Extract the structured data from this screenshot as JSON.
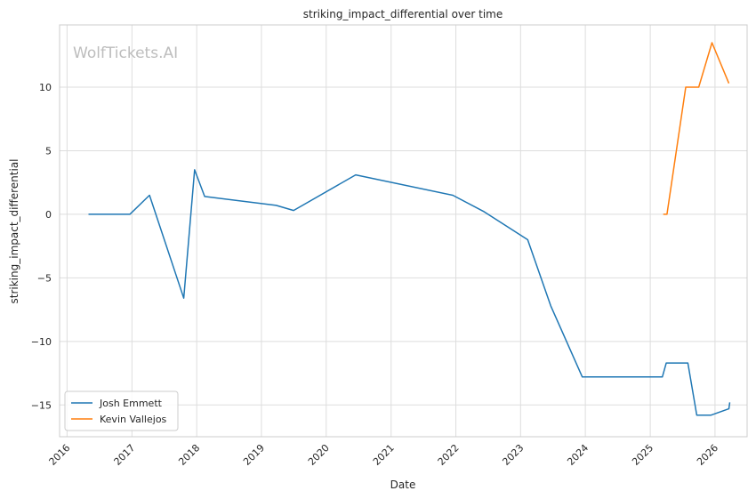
{
  "chart_data": {
    "type": "line",
    "title": "striking_impact_differential over time",
    "xlabel": "Date",
    "ylabel": "striking_impact_differential",
    "watermark": "WolfTickets.AI",
    "x_ticks": [
      "2016",
      "2017",
      "2018",
      "2019",
      "2020",
      "2021",
      "2022",
      "2023",
      "2024",
      "2025",
      "2026"
    ],
    "y_ticks": [
      -15,
      -10,
      -5,
      0,
      5,
      10
    ],
    "xlim": [
      "2015-11-20",
      "2026-07-01"
    ],
    "ylim": [
      -17.5,
      14.9
    ],
    "grid": true,
    "legend_position": "lower-left",
    "series": [
      {
        "name": "Josh Emmett",
        "color": "#1f77b4",
        "points": [
          {
            "x": "2016-05-01",
            "y": 0
          },
          {
            "x": "2016-12-20",
            "y": 0
          },
          {
            "x": "2017-04-10",
            "y": 1.5
          },
          {
            "x": "2017-10-20",
            "y": -6.6
          },
          {
            "x": "2017-12-20",
            "y": 3.5
          },
          {
            "x": "2018-02-15",
            "y": 1.4
          },
          {
            "x": "2019-03-25",
            "y": 0.7
          },
          {
            "x": "2019-07-01",
            "y": 0.3
          },
          {
            "x": "2020-06-15",
            "y": 3.1
          },
          {
            "x": "2021-12-15",
            "y": 1.5
          },
          {
            "x": "2022-06-10",
            "y": 0.2
          },
          {
            "x": "2023-02-10",
            "y": -2.0
          },
          {
            "x": "2023-06-20",
            "y": -7.2
          },
          {
            "x": "2023-12-15",
            "y": -12.8
          },
          {
            "x": "2025-03-10",
            "y": -12.8
          },
          {
            "x": "2025-04-01",
            "y": -11.7
          },
          {
            "x": "2025-08-01",
            "y": -11.7
          },
          {
            "x": "2025-09-20",
            "y": -15.8
          },
          {
            "x": "2025-12-10",
            "y": -15.8
          },
          {
            "x": "2026-03-20",
            "y": -15.3
          },
          {
            "x": "2026-03-25",
            "y": -14.8
          }
        ]
      },
      {
        "name": "Kevin Vallejos",
        "color": "#ff7f0e",
        "points": [
          {
            "x": "2025-03-15",
            "y": 0
          },
          {
            "x": "2025-04-05",
            "y": 0
          },
          {
            "x": "2025-07-20",
            "y": 10
          },
          {
            "x": "2025-10-01",
            "y": 10
          },
          {
            "x": "2025-12-15",
            "y": 13.5
          },
          {
            "x": "2026-03-20",
            "y": 10.3
          }
        ]
      }
    ]
  }
}
